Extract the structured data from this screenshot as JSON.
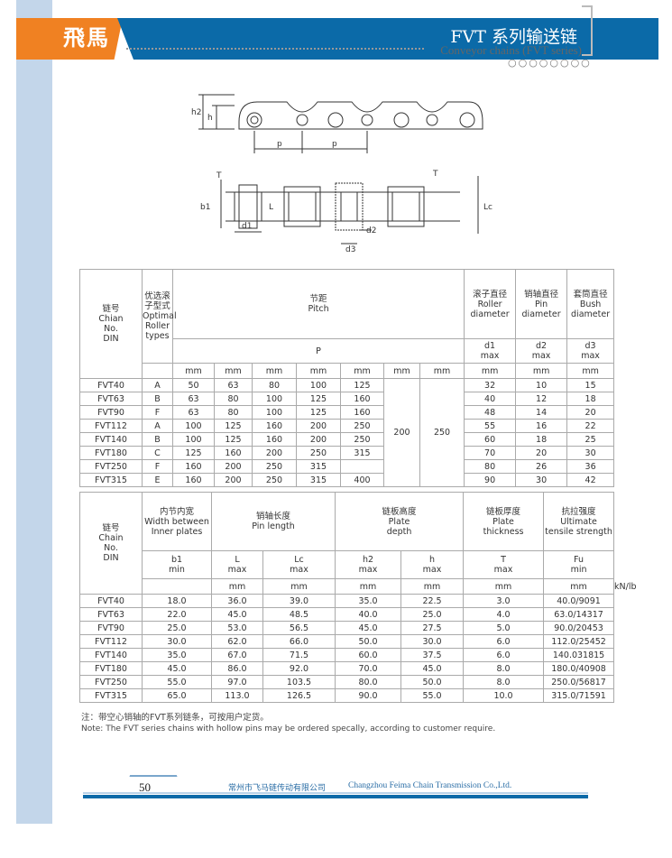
{
  "header": {
    "logo": "飛馬",
    "title": "FVT 系列输送链",
    "subtitle": "Conveyor chains (FVT series)",
    "circles": "○○○○○○○○",
    "brand_orange": "#f08122",
    "brand_blue": "#0b6aa8"
  },
  "diagram": {
    "labels": {
      "h2": "h2",
      "h": "h",
      "p1": "p",
      "p2": "p",
      "T1": "T",
      "T2": "T",
      "b1": "b1",
      "L": "L",
      "Lc": "Lc",
      "d1": "d1",
      "d2": "d2",
      "d3": "d3"
    }
  },
  "table1": {
    "header": {
      "chain_cn": "链号",
      "chain_en": "Chian",
      "no": "No.",
      "din": "DIN",
      "roller_cn": "优选滚子型式",
      "roller_en": "Optimal Roller",
      "types": "types",
      "pitch_cn": "节距",
      "pitch_en": "Pitch",
      "pitch_sym": "P",
      "d1_cn": "滚子直径",
      "d1_en": "Roller diameter",
      "d1_sym": "d1",
      "d1_lim": "max",
      "d2_cn": "销轴直径",
      "d2_en": "Pin diameter",
      "d2_sym": "d2",
      "d2_lim": "max",
      "d3_cn": "套筒直径",
      "d3_en": "Bush diameter",
      "d3_sym": "d3",
      "d3_lim": "max"
    },
    "units": [
      "mm",
      "mm",
      "mm",
      "mm",
      "mm",
      "mm",
      "mm",
      "mm",
      "mm",
      "mm"
    ],
    "shared_pitch": [
      "200",
      "250"
    ],
    "rows": [
      [
        "FVT40",
        "A",
        "50",
        "63",
        "80",
        "100",
        "125",
        "32",
        "10",
        "15"
      ],
      [
        "FVT63",
        "B",
        "63",
        "80",
        "100",
        "125",
        "160",
        "40",
        "12",
        "18"
      ],
      [
        "FVT90",
        "F",
        "63",
        "80",
        "100",
        "125",
        "160",
        "48",
        "14",
        "20"
      ],
      [
        "FVT112",
        "A",
        "100",
        "125",
        "160",
        "200",
        "250",
        "55",
        "16",
        "22"
      ],
      [
        "FVT140",
        "B",
        "100",
        "125",
        "160",
        "200",
        "250",
        "60",
        "18",
        "25"
      ],
      [
        "FVT180",
        "C",
        "125",
        "160",
        "200",
        "250",
        "315",
        "70",
        "20",
        "30"
      ],
      [
        "FVT250",
        "F",
        "160",
        "200",
        "250",
        "315",
        "",
        "80",
        "26",
        "36"
      ],
      [
        "FVT315",
        "E",
        "160",
        "200",
        "250",
        "315",
        "400",
        "90",
        "30",
        "42"
      ]
    ]
  },
  "table2": {
    "header": {
      "chain_cn": "链号",
      "chain_en": "Chain",
      "no": "No.",
      "din": "DIN",
      "groups": [
        [
          "内节内宽",
          "Width between",
          "Inner plates"
        ],
        [
          "销轴长度",
          "",
          "Pin length"
        ],
        [
          "链板高度",
          "Plate",
          "depth"
        ],
        [
          "链板厚度",
          "Plate",
          "thickness"
        ],
        [
          "抗拉强度",
          "Ultimate",
          "tensile strength"
        ]
      ],
      "subs": [
        [
          "b1",
          "min"
        ],
        [
          "L",
          "max"
        ],
        [
          "Lc",
          "max"
        ],
        [
          "h2",
          "max"
        ],
        [
          "h",
          "max"
        ],
        [
          "T",
          "max"
        ],
        [
          "Fu",
          "min"
        ]
      ]
    },
    "units": [
      "mm",
      "mm",
      "mm",
      "mm",
      "mm",
      "mm",
      "kN/lb"
    ],
    "rows": [
      [
        "FVT40",
        "18.0",
        "36.0",
        "39.0",
        "35.0",
        "22.5",
        "3.0",
        "40.0/9091"
      ],
      [
        "FVT63",
        "22.0",
        "45.0",
        "48.5",
        "40.0",
        "25.0",
        "4.0",
        "63.0/14317"
      ],
      [
        "FVT90",
        "25.0",
        "53.0",
        "56.5",
        "45.0",
        "27.5",
        "5.0",
        "90.0/20453"
      ],
      [
        "FVT112",
        "30.0",
        "62.0",
        "66.0",
        "50.0",
        "30.0",
        "6.0",
        "112.0/25452"
      ],
      [
        "FVT140",
        "35.0",
        "67.0",
        "71.5",
        "60.0",
        "37.5",
        "6.0",
        "140.031815"
      ],
      [
        "FVT180",
        "45.0",
        "86.0",
        "92.0",
        "70.0",
        "45.0",
        "8.0",
        "180.0/40908"
      ],
      [
        "FVT250",
        "55.0",
        "97.0",
        "103.5",
        "80.0",
        "50.0",
        "8.0",
        "250.0/56817"
      ],
      [
        "FVT315",
        "65.0",
        "113.0",
        "126.5",
        "90.0",
        "55.0",
        "10.0",
        "315.0/71591"
      ]
    ]
  },
  "notes": {
    "cn": "注：带空心销轴的FVT系列链条，可按用户定货。",
    "en": "Note:  The FVT series chains with hollow pins may be ordered specally, according to customer require."
  },
  "footer": {
    "page": "50",
    "company_cn": "常州市飞马链传动有限公司",
    "company_en": "Changzhou Feima Chain Transmission Co.,Ltd."
  }
}
